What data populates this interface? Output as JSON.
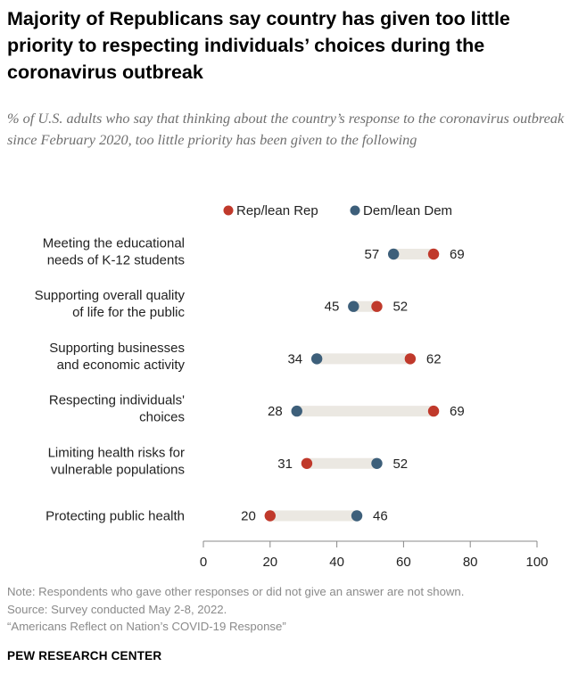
{
  "title": "Majority of Republicans say country has given too little priority to respecting individuals’ choices during the coronavirus outbreak",
  "subtitle": "% of U.S. adults who say that thinking about the country’s response to the coronavirus outbreak since February 2020, too little priority has been given to the following",
  "colors": {
    "rep": "#c0392b",
    "dem": "#3d5f7a",
    "range": "#ebe8e2",
    "axis": "#888888"
  },
  "chart_data": {
    "type": "dot-range",
    "xlim": [
      0,
      100
    ],
    "xticks": [
      0,
      20,
      40,
      60,
      80,
      100
    ],
    "series": [
      {
        "name": "Rep/lean Rep",
        "key": "rep"
      },
      {
        "name": "Dem/lean Dem",
        "key": "dem"
      }
    ],
    "categories": [
      {
        "label": [
          "Meeting the educational",
          "needs of K-12 students"
        ],
        "rep": 69,
        "dem": 57
      },
      {
        "label": [
          "Supporting overall quality",
          "of life for the public"
        ],
        "rep": 52,
        "dem": 45
      },
      {
        "label": [
          "Supporting businesses",
          "and economic activity"
        ],
        "rep": 62,
        "dem": 34
      },
      {
        "label": [
          "Respecting individuals'",
          "choices"
        ],
        "rep": 69,
        "dem": 28
      },
      {
        "label": [
          "Limiting health risks for",
          "vulnerable populations"
        ],
        "rep": 31,
        "dem": 52
      },
      {
        "label": [
          "Protecting public health"
        ],
        "rep": 20,
        "dem": 46
      }
    ]
  },
  "footer": {
    "note": "Note: Respondents who gave other responses or did not give an answer are not shown.",
    "source": "Source: Survey conducted May 2-8, 2022.",
    "report": "“Americans Reflect on Nation’s COVID-19 Response”",
    "brand": "PEW RESEARCH CENTER"
  }
}
